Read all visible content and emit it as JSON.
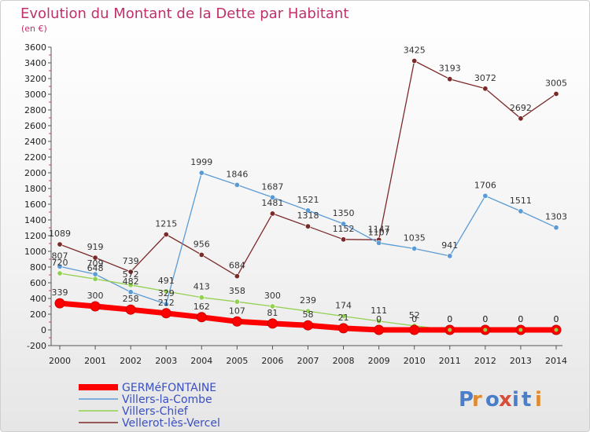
{
  "chart_data": {
    "type": "line",
    "title": "Evolution du Montant de la Dette par Habitant",
    "subtitle": "(en €)",
    "xlabel": "",
    "ylabel": "",
    "x": [
      "2000",
      "2001",
      "2002",
      "2003",
      "2004",
      "2005",
      "2006",
      "2007",
      "2008",
      "2009",
      "2010",
      "2011",
      "2012",
      "2013",
      "2014"
    ],
    "ylim": [
      -200,
      3600
    ],
    "yticks": [
      -200,
      0,
      200,
      400,
      600,
      800,
      1000,
      1200,
      1400,
      1600,
      1800,
      2000,
      2200,
      2400,
      2600,
      2800,
      3000,
      3200,
      3400,
      3600
    ],
    "grid": false,
    "legend_position": "bottom-left",
    "series": [
      {
        "name": "GERMéFONTAINE",
        "color": "#ff0000",
        "values": [
          339,
          300,
          258,
          212,
          162,
          107,
          81,
          58,
          21,
          0,
          0,
          0,
          0,
          0,
          0
        ]
      },
      {
        "name": "Villers-la-Combe",
        "color": "#5b9bd5",
        "values": [
          807,
          709,
          482,
          329,
          1999,
          1846,
          1687,
          1521,
          1350,
          1107,
          1035,
          941,
          1706,
          1511,
          1303
        ]
      },
      {
        "name": "Villers-Chief",
        "color": "#92d050",
        "values": [
          720,
          648,
          572,
          491,
          413,
          358,
          300,
          239,
          174,
          111,
          52,
          0,
          0,
          0,
          0
        ]
      },
      {
        "name": "Vellerot-lès-Vercel",
        "color": "#7b2a2a",
        "values": [
          1089,
          919,
          739,
          1215,
          956,
          684,
          1481,
          1318,
          1152,
          1147,
          3425,
          3193,
          3072,
          2692,
          3005
        ]
      }
    ]
  },
  "logo": {
    "text": "Proxiti",
    "letters": [
      "P",
      "r",
      "o",
      "x",
      "i",
      "t",
      "i"
    ],
    "colors": [
      "#4a7ec8",
      "#e08a2c",
      "#4a7ec8",
      "#d94c3a",
      "#4a7ec8",
      "#4a7ec8",
      "#e08a2c"
    ]
  }
}
